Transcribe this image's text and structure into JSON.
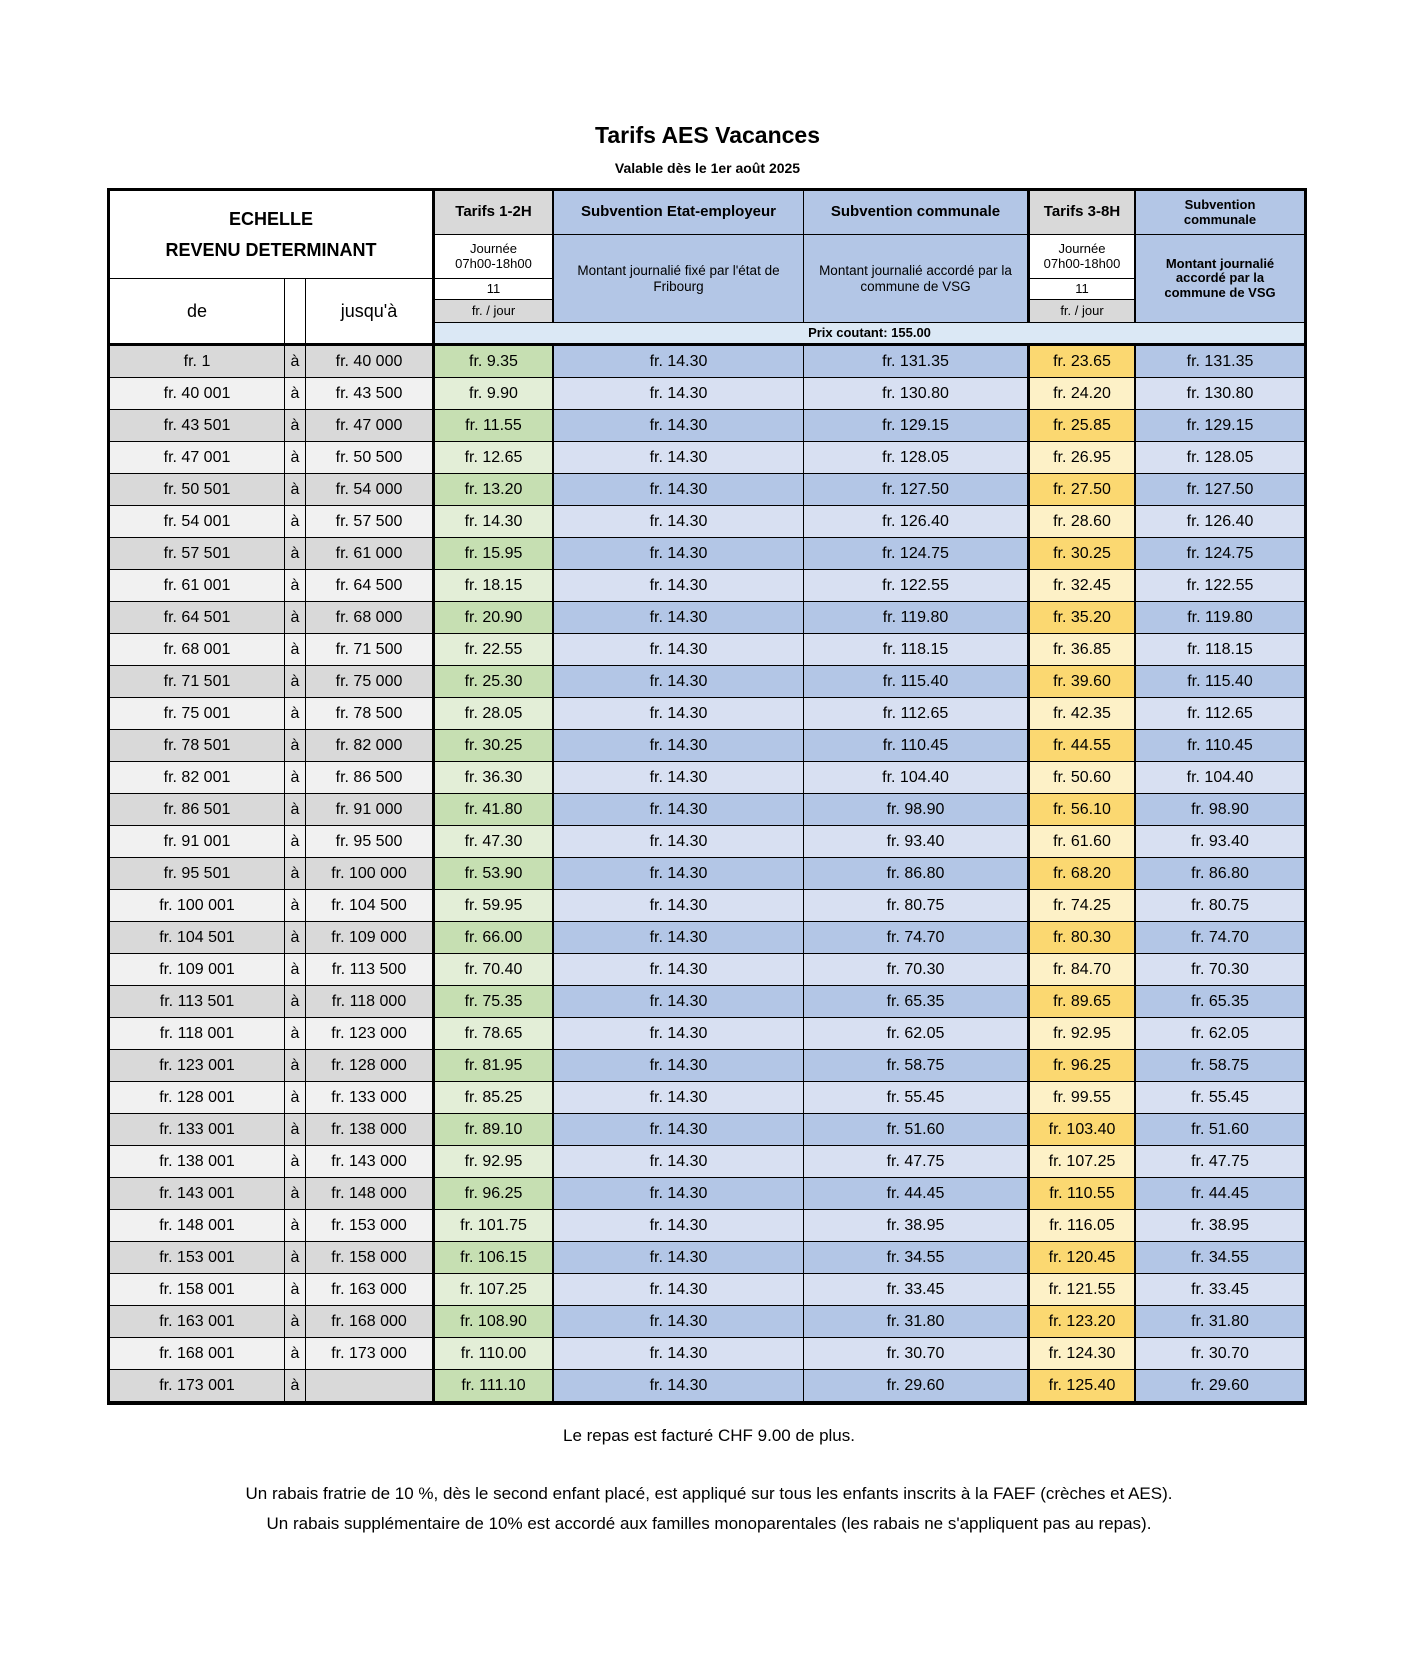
{
  "page": {
    "title": "Tarifs AES Vacances",
    "subtitle": "Valable dès le 1er août 2025"
  },
  "table": {
    "echelle_line1": "ECHELLE",
    "echelle_line2": "REVENU DETERMINANT",
    "col_de": "de",
    "col_jusqua": "jusqu'à",
    "separator": "à",
    "headers": {
      "tarifs_1_2h": "Tarifs 1-2H",
      "subvention_etat": "Subvention Etat-employeur",
      "subvention_communale": "Subvention communale",
      "tarifs_3_8h": "Tarifs 3-8H",
      "subvention_communale_2": "Subvention communale"
    },
    "subheaders": {
      "journee_line1": "Journée",
      "journee_line2": "07h00-18h00",
      "hours": "11",
      "unit": "fr. / jour",
      "montant_etat": "Montant journalié fixé par l'état de Fribourg",
      "montant_commune": "Montant journalié accordé par la commune de VSG",
      "montant_commune_2": "Montant journalié accordé par la commune de VSG"
    },
    "prix_coutant": "Prix coutant: 155.00",
    "rows": [
      [
        "fr. 1",
        "fr. 40 000",
        "fr. 9.35",
        "fr. 14.30",
        "fr. 131.35",
        "fr. 23.65",
        "fr. 131.35"
      ],
      [
        "fr. 40 001",
        "fr. 43 500",
        "fr. 9.90",
        "fr. 14.30",
        "fr. 130.80",
        "fr. 24.20",
        "fr. 130.80"
      ],
      [
        "fr. 43 501",
        "fr. 47 000",
        "fr. 11.55",
        "fr. 14.30",
        "fr. 129.15",
        "fr. 25.85",
        "fr. 129.15"
      ],
      [
        "fr. 47 001",
        "fr. 50 500",
        "fr. 12.65",
        "fr. 14.30",
        "fr. 128.05",
        "fr. 26.95",
        "fr. 128.05"
      ],
      [
        "fr. 50 501",
        "fr. 54 000",
        "fr. 13.20",
        "fr. 14.30",
        "fr. 127.50",
        "fr. 27.50",
        "fr. 127.50"
      ],
      [
        "fr. 54 001",
        "fr. 57 500",
        "fr. 14.30",
        "fr. 14.30",
        "fr. 126.40",
        "fr. 28.60",
        "fr. 126.40"
      ],
      [
        "fr. 57 501",
        "fr. 61 000",
        "fr. 15.95",
        "fr. 14.30",
        "fr. 124.75",
        "fr. 30.25",
        "fr. 124.75"
      ],
      [
        "fr. 61 001",
        "fr. 64 500",
        "fr. 18.15",
        "fr. 14.30",
        "fr. 122.55",
        "fr. 32.45",
        "fr. 122.55"
      ],
      [
        "fr. 64 501",
        "fr. 68 000",
        "fr. 20.90",
        "fr. 14.30",
        "fr. 119.80",
        "fr. 35.20",
        "fr. 119.80"
      ],
      [
        "fr. 68 001",
        "fr. 71 500",
        "fr. 22.55",
        "fr. 14.30",
        "fr. 118.15",
        "fr. 36.85",
        "fr. 118.15"
      ],
      [
        "fr. 71 501",
        "fr. 75 000",
        "fr. 25.30",
        "fr. 14.30",
        "fr. 115.40",
        "fr. 39.60",
        "fr. 115.40"
      ],
      [
        "fr. 75 001",
        "fr. 78 500",
        "fr. 28.05",
        "fr. 14.30",
        "fr. 112.65",
        "fr. 42.35",
        "fr. 112.65"
      ],
      [
        "fr. 78 501",
        "fr. 82 000",
        "fr. 30.25",
        "fr. 14.30",
        "fr. 110.45",
        "fr. 44.55",
        "fr. 110.45"
      ],
      [
        "fr. 82 001",
        "fr. 86 500",
        "fr. 36.30",
        "fr. 14.30",
        "fr. 104.40",
        "fr. 50.60",
        "fr. 104.40"
      ],
      [
        "fr. 86 501",
        "fr. 91 000",
        "fr. 41.80",
        "fr. 14.30",
        "fr. 98.90",
        "fr. 56.10",
        "fr. 98.90"
      ],
      [
        "fr. 91 001",
        "fr. 95 500",
        "fr. 47.30",
        "fr. 14.30",
        "fr. 93.40",
        "fr. 61.60",
        "fr. 93.40"
      ],
      [
        "fr. 95 501",
        "fr. 100 000",
        "fr. 53.90",
        "fr. 14.30",
        "fr. 86.80",
        "fr. 68.20",
        "fr. 86.80"
      ],
      [
        "fr. 100 001",
        "fr. 104 500",
        "fr. 59.95",
        "fr. 14.30",
        "fr. 80.75",
        "fr. 74.25",
        "fr. 80.75"
      ],
      [
        "fr. 104 501",
        "fr. 109 000",
        "fr. 66.00",
        "fr. 14.30",
        "fr. 74.70",
        "fr. 80.30",
        "fr. 74.70"
      ],
      [
        "fr. 109 001",
        "fr. 113 500",
        "fr. 70.40",
        "fr. 14.30",
        "fr. 70.30",
        "fr. 84.70",
        "fr. 70.30"
      ],
      [
        "fr. 113 501",
        "fr. 118 000",
        "fr. 75.35",
        "fr. 14.30",
        "fr. 65.35",
        "fr. 89.65",
        "fr. 65.35"
      ],
      [
        "fr. 118 001",
        "fr. 123 000",
        "fr. 78.65",
        "fr. 14.30",
        "fr. 62.05",
        "fr. 92.95",
        "fr. 62.05"
      ],
      [
        "fr. 123 001",
        "fr. 128 000",
        "fr. 81.95",
        "fr. 14.30",
        "fr. 58.75",
        "fr. 96.25",
        "fr. 58.75"
      ],
      [
        "fr. 128 001",
        "fr. 133 000",
        "fr. 85.25",
        "fr. 14.30",
        "fr. 55.45",
        "fr. 99.55",
        "fr. 55.45"
      ],
      [
        "fr. 133 001",
        "fr. 138 000",
        "fr. 89.10",
        "fr. 14.30",
        "fr. 51.60",
        "fr. 103.40",
        "fr. 51.60"
      ],
      [
        "fr. 138 001",
        "fr. 143 000",
        "fr. 92.95",
        "fr. 14.30",
        "fr. 47.75",
        "fr. 107.25",
        "fr. 47.75"
      ],
      [
        "fr. 143 001",
        "fr. 148 000",
        "fr. 96.25",
        "fr. 14.30",
        "fr. 44.45",
        "fr. 110.55",
        "fr. 44.45"
      ],
      [
        "fr. 148 001",
        "fr. 153 000",
        "fr. 101.75",
        "fr. 14.30",
        "fr. 38.95",
        "fr. 116.05",
        "fr. 38.95"
      ],
      [
        "fr. 153 001",
        "fr. 158 000",
        "fr. 106.15",
        "fr. 14.30",
        "fr. 34.55",
        "fr. 120.45",
        "fr. 34.55"
      ],
      [
        "fr. 158 001",
        "fr. 163 000",
        "fr. 107.25",
        "fr. 14.30",
        "fr. 33.45",
        "fr. 121.55",
        "fr. 33.45"
      ],
      [
        "fr. 163 001",
        "fr. 168 000",
        "fr. 108.90",
        "fr. 14.30",
        "fr. 31.80",
        "fr. 123.20",
        "fr. 31.80"
      ],
      [
        "fr. 168 001",
        "fr. 173 000",
        "fr. 110.00",
        "fr. 14.30",
        "fr. 30.70",
        "fr. 124.30",
        "fr. 30.70"
      ],
      [
        "fr. 173 001",
        "",
        "fr. 111.10",
        "fr. 14.30",
        "fr. 29.60",
        "fr. 125.40",
        "fr. 29.60"
      ]
    ]
  },
  "footer": {
    "note_repas": "Le repas est facturé CHF 9.00 de plus.",
    "note_rabais_1": "Un rabais fratrie de 10 %, dès le second enfant placé, est appliqué sur tous les enfants inscrits à la FAEF (crèches et AES).",
    "note_rabais_2": "Un rabais supplémentaire de 10% est accordé aux familles monoparentales (les rabais ne s'appliquent pas au repas)."
  },
  "colors": {
    "grey_dark": "#d9d9d9",
    "grey_light": "#f1f1f1",
    "green_dark": "#c6dfb2",
    "green_light": "#e3eed7",
    "blue_dark": "#b3c6e6",
    "blue_light": "#d8e0f2",
    "yellow_dark": "#fbd871",
    "yellow_light": "#fdf1c7",
    "header_blue": "#b3c6e6",
    "prix_row": "#dbe8f5"
  }
}
